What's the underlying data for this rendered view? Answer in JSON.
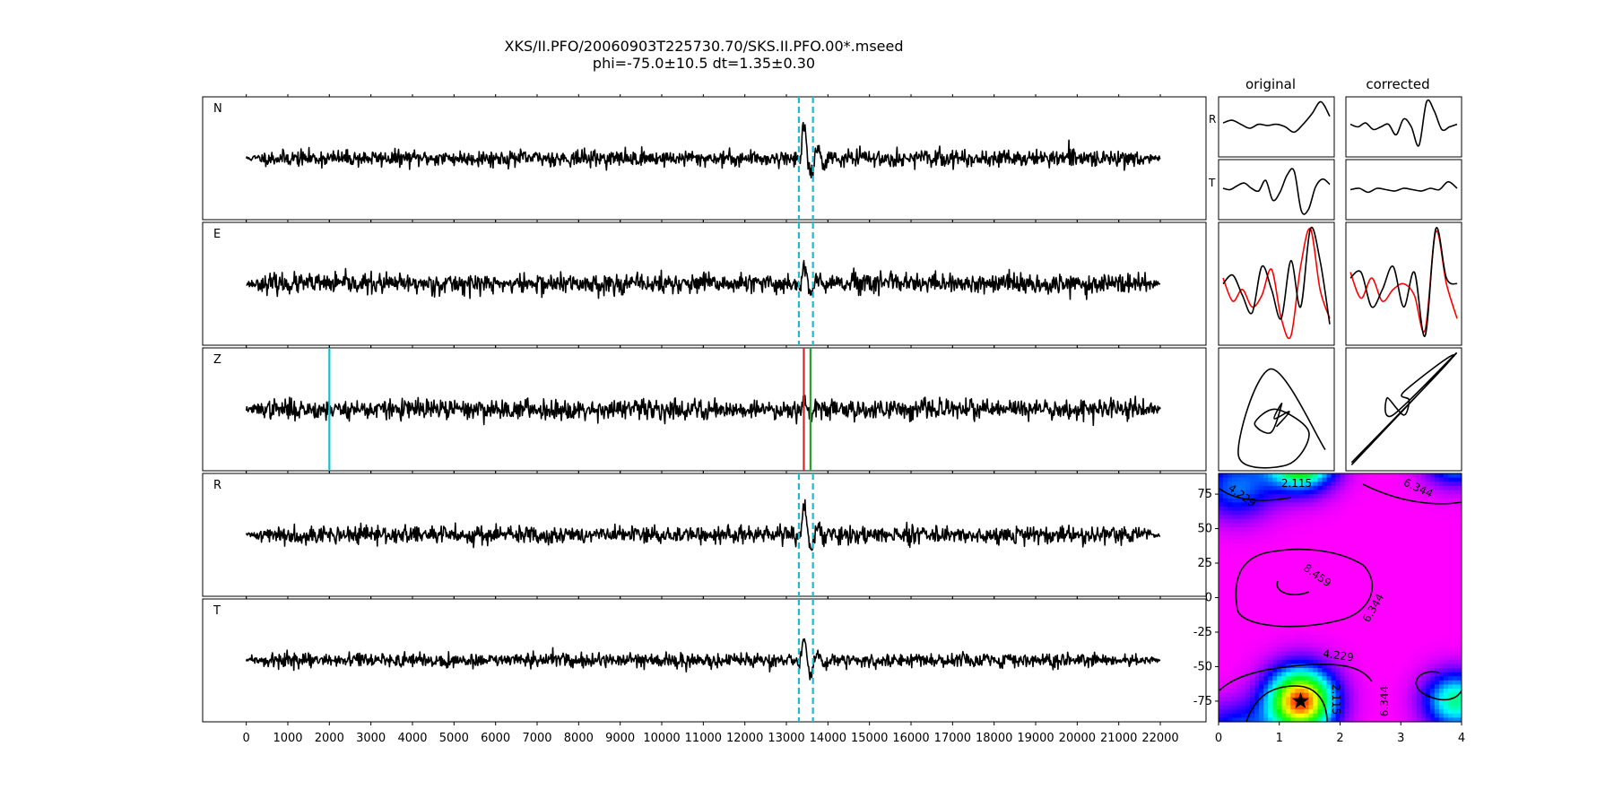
{
  "title": {
    "line1": "XKS/II.PFO/20060903T225730.70/SKS.II.PFO.00*.mseed",
    "line2": "phi=-75.0±10.5 dt=1.35±0.30"
  },
  "column_titles": {
    "original": "original",
    "corrected": "corrected"
  },
  "colors": {
    "trace": "#000000",
    "window_marker": "#17becf",
    "pick_red": "#d62728",
    "pick_green": "#2ca02c",
    "rotated_red": "#ff0000",
    "star": "#000000"
  },
  "chart_data": [
    {
      "type": "line",
      "name": "seismogram-panels",
      "panels": [
        {
          "label": "N",
          "seed": 11,
          "arrival_amp": 3.2,
          "noise_amp": 0.8
        },
        {
          "label": "E",
          "seed": 23,
          "arrival_amp": 1.6,
          "noise_amp": 1.0
        },
        {
          "label": "Z",
          "seed": 37,
          "arrival_amp": 1.1,
          "noise_amp": 1.0
        },
        {
          "label": "R",
          "seed": 41,
          "arrival_amp": 2.6,
          "noise_amp": 0.9
        },
        {
          "label": "T",
          "seed": 59,
          "arrival_amp": 2.2,
          "noise_amp": 0.7
        }
      ],
      "xlim": [
        -1050,
        23100
      ],
      "ylim": [
        -4,
        4
      ],
      "trace_range": [
        0,
        22000
      ],
      "xticks": [
        0,
        1000,
        2000,
        3000,
        4000,
        5000,
        6000,
        7000,
        8000,
        9000,
        10000,
        11000,
        12000,
        13000,
        14000,
        15000,
        16000,
        17000,
        18000,
        19000,
        20000,
        21000,
        22000
      ],
      "window_start": 13300,
      "window_end": 13640,
      "z_markers": {
        "cyan": 2000,
        "red": 13420,
        "green": 13580
      }
    },
    {
      "type": "line",
      "name": "waveform-comparison",
      "original": {
        "R": [
          0.15,
          0.25,
          0.1,
          -0.05,
          0.1,
          0.05,
          0.1,
          0.0,
          -0.2,
          0.1,
          0.5,
          0.95,
          0.4
        ],
        "T": [
          0.05,
          0.0,
          0.15,
          0.25,
          0.05,
          -0.05,
          0.35,
          -0.4,
          -0.1,
          0.55,
          0.7,
          -0.8,
          -0.75,
          0.1,
          0.4,
          0.2
        ],
        "pair_black": [
          0.0,
          0.15,
          -0.2,
          -0.5,
          0.3,
          -0.1,
          -0.6,
          0.4,
          -0.4,
          0.95,
          0.4,
          -0.7
        ],
        "pair_red": [
          0.1,
          -0.3,
          -0.1,
          -0.4,
          -0.2,
          0.25,
          -0.6,
          -0.9,
          0.3,
          0.95,
          -0.1,
          -0.6
        ]
      },
      "corrected": {
        "R": [
          0.1,
          0.0,
          0.15,
          -0.1,
          0.0,
          0.1,
          -0.3,
          0.3,
          0.0,
          -0.7,
          0.95,
          0.6,
          -0.1,
          0.0,
          0.1
        ],
        "T": [
          0.0,
          0.05,
          -0.1,
          0.05,
          0.0,
          -0.05,
          0.05,
          0.0,
          -0.05,
          0.05,
          0.0,
          0.3,
          0.05
        ],
        "pair_black": [
          0.1,
          0.2,
          -0.4,
          -0.1,
          0.3,
          -0.4,
          0.2,
          -0.9,
          0.95,
          0.1,
          0.0
        ],
        "pair_red": [
          0.2,
          -0.25,
          0.1,
          -0.3,
          -0.1,
          0.0,
          -0.2,
          -0.8,
          0.9,
          0.0,
          -0.6
        ]
      },
      "side_labels": [
        "R",
        "T"
      ]
    },
    {
      "type": "line",
      "name": "particle-motion",
      "original": [
        [
          0.95,
          0.15
        ],
        [
          0.45,
          0.85
        ],
        [
          0.15,
          0.1
        ],
        [
          0.6,
          0.02
        ],
        [
          0.8,
          0.3
        ],
        [
          0.5,
          0.5
        ],
        [
          0.3,
          0.38
        ],
        [
          0.45,
          0.3
        ],
        [
          0.55,
          0.55
        ],
        [
          0.48,
          0.42
        ],
        [
          0.62,
          0.48
        ],
        [
          0.5,
          0.35
        ]
      ],
      "corrected": [
        [
          0.02,
          0.02
        ],
        [
          0.98,
          0.98
        ],
        [
          0.4,
          0.45
        ],
        [
          0.35,
          0.6
        ],
        [
          0.5,
          0.45
        ],
        [
          0.55,
          0.58
        ],
        [
          0.5,
          0.65
        ],
        [
          0.95,
          0.95
        ],
        [
          0.02,
          0.04
        ]
      ]
    },
    {
      "type": "heatmap",
      "name": "error-surface",
      "xlim": [
        0,
        4
      ],
      "ylim": [
        -90,
        90
      ],
      "xticks": [
        0,
        1,
        2,
        3,
        4
      ],
      "yticks": [
        75,
        50,
        25,
        0,
        -25,
        -50,
        -75
      ],
      "contour_levels": [
        "2.115",
        "4.229",
        "6.344",
        "8.459"
      ],
      "best": {
        "dt": 1.35,
        "phi": -75.0
      },
      "hot_spot": {
        "dt": 1.35,
        "phi": -75,
        "lobes_at_dt": [
          1.35,
          3.7
        ],
        "lobe_phi": -75
      },
      "cool_spot": {
        "dt": 1.45,
        "phi": 10
      }
    }
  ]
}
